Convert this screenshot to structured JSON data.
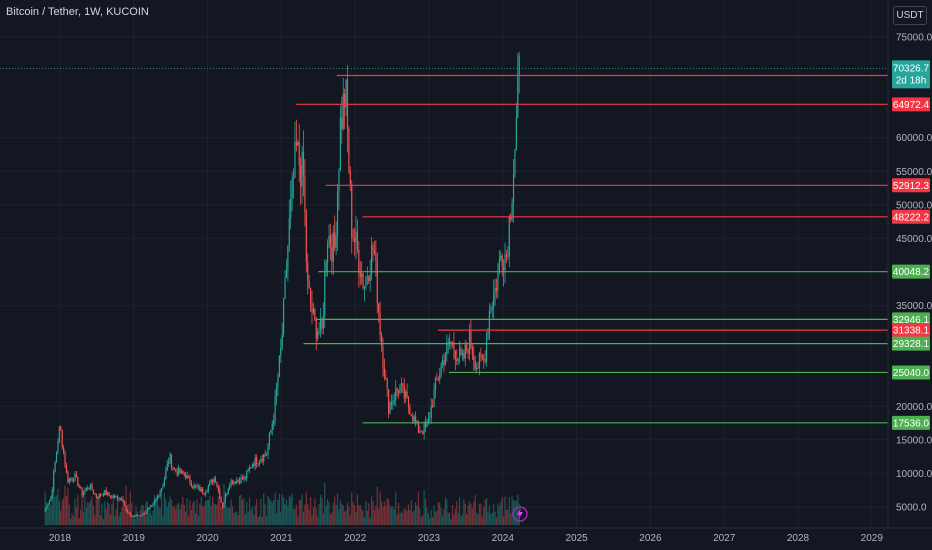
{
  "header": {
    "title": "Bitcoin / Tether, 1W, KUCOIN",
    "currency": "USDT"
  },
  "chart_data": {
    "type": "candlestick",
    "x_range": [
      2017.55,
      2029.25
    ],
    "ylim": [
      2000,
      77000
    ],
    "x_ticks": [
      {
        "value": 2018,
        "label": "2018"
      },
      {
        "value": 2019,
        "label": "2019"
      },
      {
        "value": 2020,
        "label": "2020"
      },
      {
        "value": 2021,
        "label": "2021"
      },
      {
        "value": 2022,
        "label": "2022"
      },
      {
        "value": 2023,
        "label": "2023"
      },
      {
        "value": 2024,
        "label": "2024"
      },
      {
        "value": 2025,
        "label": "2025"
      },
      {
        "value": 2026,
        "label": "2026"
      },
      {
        "value": 2027,
        "label": "2027"
      },
      {
        "value": 2028,
        "label": "2028"
      },
      {
        "value": 2029,
        "label": "2029"
      }
    ],
    "y_ticks": [
      {
        "value": 75000,
        "label": "75000.0"
      },
      {
        "value": 60000,
        "label": "60000.0"
      },
      {
        "value": 55000,
        "label": "55000.0"
      },
      {
        "value": 50000,
        "label": "50000.0"
      },
      {
        "value": 45000,
        "label": "45000.0"
      },
      {
        "value": 35000,
        "label": "35000.0"
      },
      {
        "value": 20000,
        "label": "20000.0"
      },
      {
        "value": 15000,
        "label": "15000.0"
      },
      {
        "value": 10000,
        "label": "10000.0"
      },
      {
        "value": 5000,
        "label": "5000.0"
      }
    ],
    "current_price": {
      "value": 70326.7,
      "label": "70326.7",
      "countdown": "2d 18h",
      "color": "#26a69a"
    },
    "levels": [
      {
        "value": 69260.4,
        "label": "69260.4",
        "start": 2021.75,
        "color": "#f23645"
      },
      {
        "value": 64972.4,
        "label": "64972.4",
        "start": 2021.2,
        "color": "#f23645"
      },
      {
        "value": 52912.3,
        "label": "52912.3",
        "start": 2021.6,
        "color": "#f23645"
      },
      {
        "value": 48222.2,
        "label": "48222.2",
        "start": 2022.1,
        "color": "#f23645"
      },
      {
        "value": 40048.2,
        "label": "40048.2",
        "start": 2021.5,
        "color": "#4caf50"
      },
      {
        "value": 32946.1,
        "label": "32946.1",
        "start": 2021.47,
        "color": "#4caf50"
      },
      {
        "value": 31338.1,
        "label": "31338.1",
        "start": 2023.12,
        "color": "#f23645"
      },
      {
        "value": 29328.1,
        "label": "29328.1",
        "start": 2021.3,
        "color": "#4caf50"
      },
      {
        "value": 25040.0,
        "label": "25040.0",
        "start": 2023.27,
        "color": "#4caf50"
      },
      {
        "value": 17536.0,
        "label": "17536.0",
        "start": 2022.1,
        "color": "#4caf50"
      }
    ],
    "price_path": [
      [
        2017.78,
        4300
      ],
      [
        2017.88,
        6500
      ],
      [
        2017.97,
        15000
      ],
      [
        2018.0,
        17000
      ],
      [
        2018.05,
        13000
      ],
      [
        2018.1,
        9000
      ],
      [
        2018.2,
        9500
      ],
      [
        2018.3,
        7000
      ],
      [
        2018.4,
        8200
      ],
      [
        2018.5,
        6500
      ],
      [
        2018.6,
        7200
      ],
      [
        2018.7,
        6500
      ],
      [
        2018.85,
        6300
      ],
      [
        2018.9,
        4200
      ],
      [
        2018.97,
        3600
      ],
      [
        2019.1,
        3800
      ],
      [
        2019.25,
        5000
      ],
      [
        2019.4,
        8500
      ],
      [
        2019.48,
        12500
      ],
      [
        2019.55,
        10500
      ],
      [
        2019.7,
        9700
      ],
      [
        2019.8,
        8200
      ],
      [
        2019.95,
        7200
      ],
      [
        2020.1,
        9500
      ],
      [
        2020.2,
        5000
      ],
      [
        2020.3,
        8800
      ],
      [
        2020.5,
        9200
      ],
      [
        2020.6,
        11500
      ],
      [
        2020.8,
        13000
      ],
      [
        2020.9,
        19000
      ],
      [
        2021.0,
        29000
      ],
      [
        2021.1,
        46000
      ],
      [
        2021.2,
        58000
      ],
      [
        2021.3,
        54000
      ],
      [
        2021.35,
        38000
      ],
      [
        2021.45,
        32000
      ],
      [
        2021.55,
        31000
      ],
      [
        2021.62,
        46000
      ],
      [
        2021.72,
        43000
      ],
      [
        2021.8,
        62000
      ],
      [
        2021.87,
        67000
      ],
      [
        2021.95,
        47000
      ],
      [
        2022.05,
        42000
      ],
      [
        2022.12,
        38000
      ],
      [
        2022.25,
        44000
      ],
      [
        2022.35,
        30000
      ],
      [
        2022.45,
        20000
      ],
      [
        2022.6,
        23000
      ],
      [
        2022.75,
        19500
      ],
      [
        2022.85,
        16500
      ],
      [
        2022.97,
        16700
      ],
      [
        2023.1,
        23500
      ],
      [
        2023.22,
        28000
      ],
      [
        2023.3,
        29500
      ],
      [
        2023.45,
        26500
      ],
      [
        2023.55,
        30000
      ],
      [
        2023.65,
        26000
      ],
      [
        2023.75,
        27000
      ],
      [
        2023.82,
        34500
      ],
      [
        2023.9,
        37500
      ],
      [
        2023.98,
        43000
      ],
      [
        2024.05,
        42500
      ],
      [
        2024.12,
        52000
      ],
      [
        2024.18,
        61000
      ],
      [
        2024.22,
        69000
      ],
      [
        2024.24,
        70326.7
      ]
    ]
  }
}
